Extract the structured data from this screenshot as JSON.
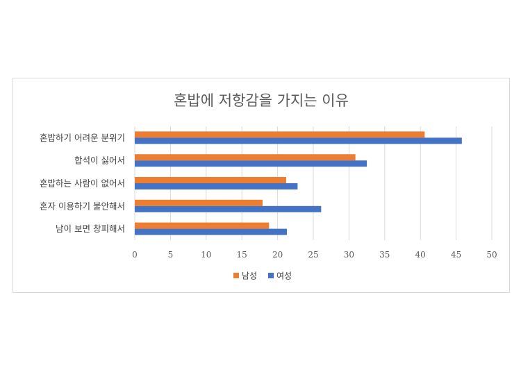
{
  "chart_data": {
    "type": "bar",
    "orientation": "horizontal",
    "title": "혼밥에 저항감을 가지는 이유",
    "categories": [
      "혼밥하기 어려운 분위기",
      "합석이 싫어서",
      "혼밥하는 사람이 없어서",
      "혼자 이용하기 불안해서",
      "남이 보면 창피해서"
    ],
    "series": [
      {
        "name": "남성",
        "color": "#ed7d31",
        "values": [
          40.6,
          30.9,
          21.2,
          17.9,
          18.8
        ]
      },
      {
        "name": "여성",
        "color": "#4472c4",
        "values": [
          45.8,
          32.5,
          22.8,
          26.1,
          21.3
        ]
      }
    ],
    "xlim": [
      0,
      50
    ],
    "xticks": [
      "0",
      "5",
      "10",
      "15",
      "20",
      "25",
      "30",
      "35",
      "40",
      "45",
      "50"
    ],
    "grid": true,
    "legend": "bottom"
  }
}
